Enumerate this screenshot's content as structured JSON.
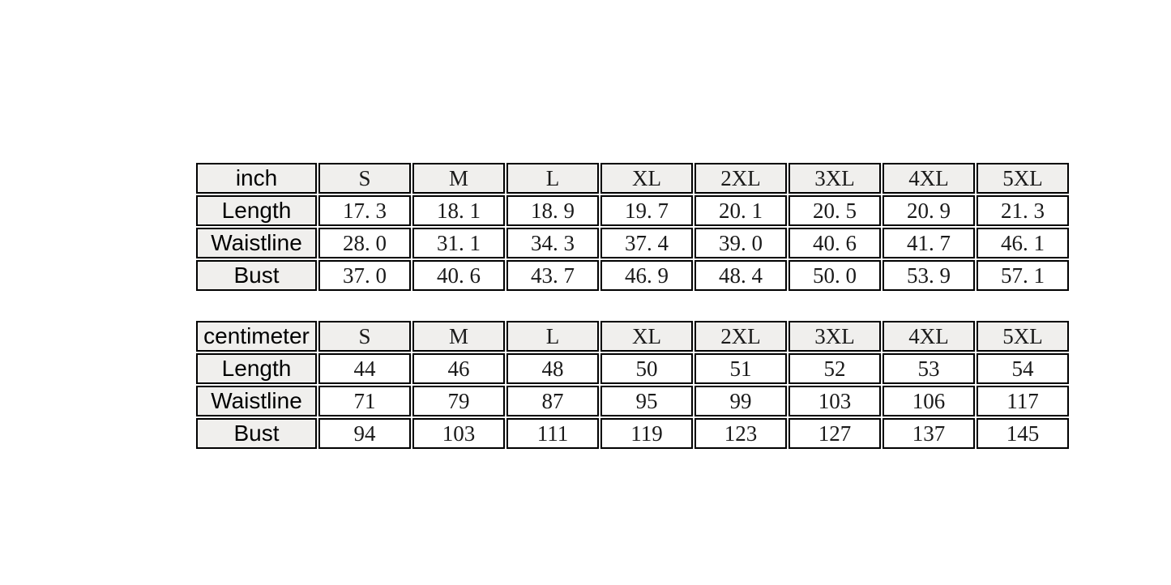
{
  "page": {
    "background_color": "#ffffff",
    "header_cell_color": "#f0efed",
    "border_color": "#000000",
    "text_color": "#000000"
  },
  "tables": [
    {
      "name": "size-table-inch",
      "unit_label": "inch",
      "columns": [
        "S",
        "M",
        "L",
        "XL",
        "2XL",
        "3XL",
        "4XL",
        "5XL"
      ],
      "rows": [
        {
          "label": "Length",
          "values": [
            "17. 3",
            "18. 1",
            "18. 9",
            "19. 7",
            "20. 1",
            "20. 5",
            "20. 9",
            "21. 3"
          ]
        },
        {
          "label": "Waistline",
          "values": [
            "28. 0",
            "31. 1",
            "34. 3",
            "37. 4",
            "39. 0",
            "40. 6",
            "41. 7",
            "46. 1"
          ]
        },
        {
          "label": "Bust",
          "values": [
            "37. 0",
            "40. 6",
            "43. 7",
            "46. 9",
            "48. 4",
            "50. 0",
            "53. 9",
            "57. 1"
          ]
        }
      ]
    },
    {
      "name": "size-table-centimeter",
      "unit_label": "centimeter",
      "columns": [
        "S",
        "M",
        "L",
        "XL",
        "2XL",
        "3XL",
        "4XL",
        "5XL"
      ],
      "rows": [
        {
          "label": "Length",
          "values": [
            "44",
            "46",
            "48",
            "50",
            "51",
            "52",
            "53",
            "54"
          ]
        },
        {
          "label": "Waistline",
          "values": [
            "71",
            "79",
            "87",
            "95",
            "99",
            "103",
            "106",
            "117"
          ]
        },
        {
          "label": "Bust",
          "values": [
            "94",
            "103",
            "111",
            "119",
            "123",
            "127",
            "137",
            "145"
          ]
        }
      ]
    }
  ]
}
